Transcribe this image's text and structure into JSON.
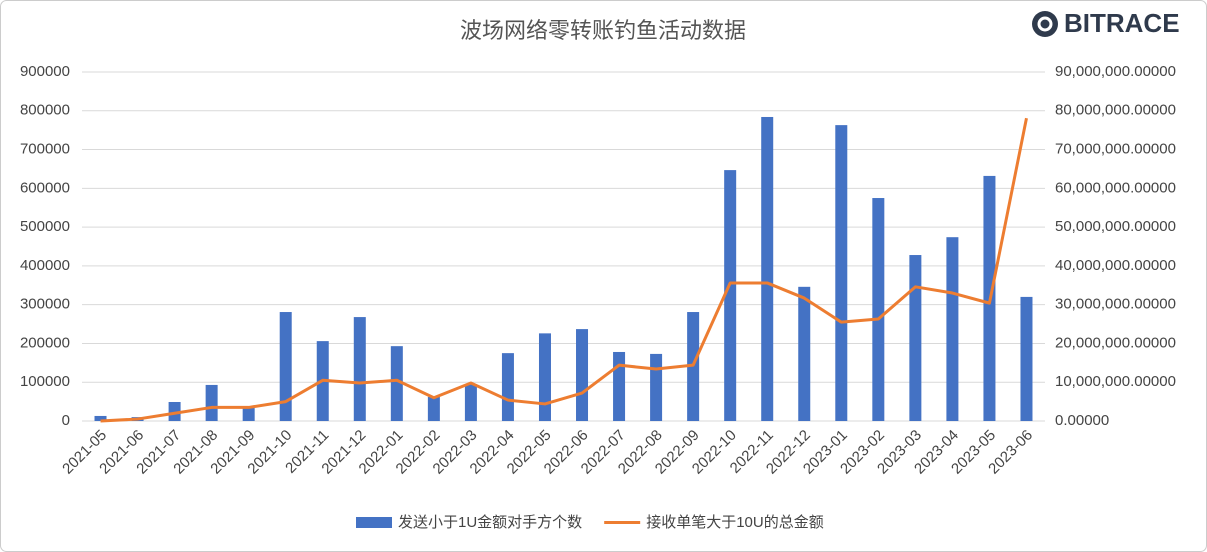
{
  "chart_data": {
    "type": "bar-line",
    "title": "波场网络零转账钓鱼活动数据",
    "logo": "BITRACE",
    "categories": [
      "2021-05",
      "2021-06",
      "2021-07",
      "2021-08",
      "2021-09",
      "2021-10",
      "2021-11",
      "2021-12",
      "2022-01",
      "2022-02",
      "2022-03",
      "2022-04",
      "2022-05",
      "2022-06",
      "2022-07",
      "2022-08",
      "2022-09",
      "2022-10",
      "2022-11",
      "2022-12",
      "2023-01",
      "2023-02",
      "2023-03",
      "2023-04",
      "2023-05",
      "2023-06"
    ],
    "series": [
      {
        "name": "发送小于1U金额对手方个数",
        "type": "bar",
        "color": "#4472c4",
        "values": [
          13000,
          10000,
          49000,
          93000,
          36000,
          281000,
          206000,
          268000,
          193000,
          62000,
          95000,
          175000,
          226000,
          237000,
          178000,
          173000,
          281000,
          647000,
          784000,
          346000,
          763000,
          575000,
          428000,
          474000,
          632000,
          320000
        ]
      },
      {
        "name": "接收单笔大于10U的总金额",
        "type": "line",
        "axis": "y2",
        "color": "#ed7d31",
        "values": [
          0,
          500000,
          2000000,
          3500000,
          3500000,
          5000000,
          10500000,
          9800000,
          10500000,
          6000000,
          9800000,
          5400000,
          4400000,
          7200000,
          14400000,
          13400000,
          14400000,
          35600000,
          35600000,
          31700000,
          25500000,
          26300000,
          34600000,
          33000000,
          30400000,
          78100000
        ]
      }
    ],
    "ylim": [
      0,
      900000
    ],
    "yticks": [
      0,
      100000,
      200000,
      300000,
      400000,
      500000,
      600000,
      700000,
      800000,
      900000
    ],
    "y2lim": [
      0,
      90000000
    ],
    "y2ticks": [
      {
        "value": 0,
        "label": "0.00000"
      },
      {
        "value": 10000000,
        "label": "10,000,000.00000"
      },
      {
        "value": 20000000,
        "label": "20,000,000.00000"
      },
      {
        "value": 30000000,
        "label": "30,000,000.00000"
      },
      {
        "value": 40000000,
        "label": "40,000,000.00000"
      },
      {
        "value": 50000000,
        "label": "50,000,000.00000"
      },
      {
        "value": 60000000,
        "label": "60,000,000.00000"
      },
      {
        "value": 70000000,
        "label": "70,000,000.00000"
      },
      {
        "value": 80000000,
        "label": "80,000,000.00000"
      },
      {
        "value": 90000000,
        "label": "90,000,000.00000"
      }
    ],
    "grid": true
  }
}
